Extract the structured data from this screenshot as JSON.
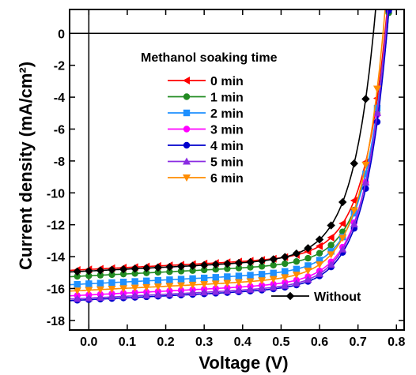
{
  "chart_data": {
    "type": "line",
    "xlabel": "Voltage (V)",
    "ylabel": "Current density (mA/cm²)",
    "xlim": [
      -0.05,
      0.82
    ],
    "ylim": [
      -18.6,
      1.5
    ],
    "x_ticks": [
      "0.0",
      "0.1",
      "0.2",
      "0.3",
      "0.4",
      "0.5",
      "0.6",
      "0.7",
      "0.8"
    ],
    "y_ticks": [
      "0",
      "-2",
      "-4",
      "-6",
      "-8",
      "-10",
      "-12",
      "-14",
      "-16",
      "-18"
    ],
    "legend_title": "Methanol soaking time",
    "legend_position": "upper-left inside plot",
    "secondary_legend_position": "lower-right inside plot",
    "series": [
      {
        "name": "0 min",
        "color": "#ff0000",
        "marker": "triangle-left",
        "jsc": -14.8,
        "voc": 0.77,
        "legend_group": "main"
      },
      {
        "name": "1 min",
        "color": "#228b22",
        "marker": "circle",
        "jsc": -15.2,
        "voc": 0.775,
        "legend_group": "main"
      },
      {
        "name": "2 min",
        "color": "#1e90ff",
        "marker": "square",
        "jsc": -15.7,
        "voc": 0.772,
        "legend_group": "main"
      },
      {
        "name": "3 min",
        "color": "#ff00ff",
        "marker": "circle",
        "jsc": -16.4,
        "voc": 0.773,
        "legend_group": "main"
      },
      {
        "name": "4 min",
        "color": "#0000cd",
        "marker": "circle",
        "jsc": -16.7,
        "voc": 0.775,
        "legend_group": "main"
      },
      {
        "name": "5 min",
        "color": "#8a2be2",
        "marker": "triangle-up",
        "jsc": -16.6,
        "voc": 0.772,
        "legend_group": "main"
      },
      {
        "name": "6 min",
        "color": "#ff8c00",
        "marker": "triangle-down",
        "jsc": -16.1,
        "voc": 0.765,
        "legend_group": "main"
      },
      {
        "name": "Without",
        "color": "#000000",
        "marker": "diamond",
        "jsc": -14.9,
        "voc": 0.74,
        "legend_group": "secondary"
      }
    ]
  }
}
